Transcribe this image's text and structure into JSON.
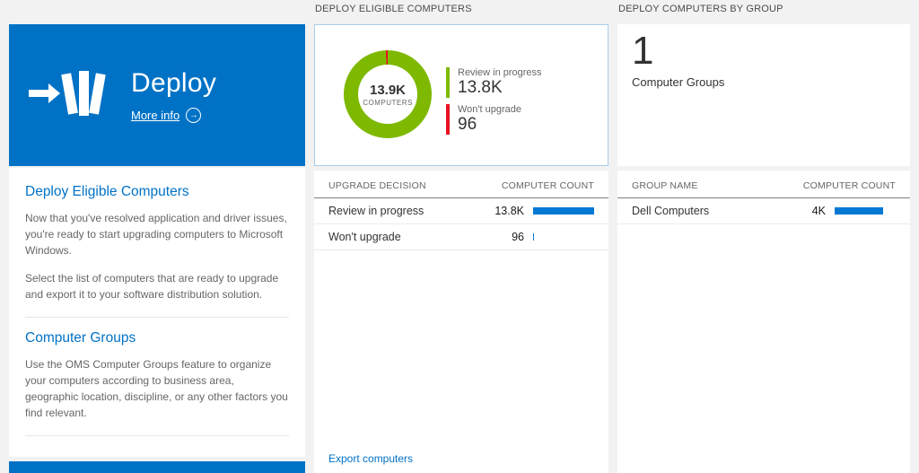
{
  "colors": {
    "accent_blue": "#0072c6",
    "bar_blue": "#0078d4",
    "green": "#7eb900",
    "red": "#e81123"
  },
  "left": {
    "tile": {
      "title": "Deploy",
      "more_info": "More info",
      "more_info_icon": "→"
    },
    "sections": [
      {
        "heading": "Deploy Eligible Computers",
        "paragraphs": [
          "Now that you've resolved application and driver issues, you're ready to start upgrading computers to Microsoft Windows.",
          "Select the list of computers that are ready to upgrade and export it to your software distribution solution."
        ]
      },
      {
        "heading": "Computer Groups",
        "paragraphs": [
          "Use the OMS Computer Groups feature to organize your computers according to business area, geographic location, discipline, or any other factors you find relevant."
        ]
      }
    ]
  },
  "middle": {
    "header": "DEPLOY ELIGIBLE COMPUTERS",
    "donut": {
      "center_value": "13.9K",
      "center_label": "COMPUTERS",
      "segments": [
        {
          "label": "Review in progress",
          "value": 13800,
          "value_label": "13.8K",
          "color": "#7eb900"
        },
        {
          "label": "Won't upgrade",
          "value": 96,
          "value_label": "96",
          "color": "#e81123"
        }
      ]
    },
    "table": {
      "columns": [
        "UPGRADE DECISION",
        "COMPUTER COUNT"
      ],
      "rows": [
        {
          "label": "Review in progress",
          "value": "13.8K",
          "bar_pct": 100
        },
        {
          "label": "Won't upgrade",
          "value": "96",
          "bar_pct": 1.5
        }
      ]
    },
    "export_link": "Export computers"
  },
  "right": {
    "header": "DEPLOY COMPUTERS BY GROUP",
    "summary": {
      "value": "1",
      "label": "Computer Groups"
    },
    "table": {
      "columns": [
        "GROUP NAME",
        "COMPUTER COUNT"
      ],
      "rows": [
        {
          "label": "Dell Computers",
          "value": "4K",
          "bar_pct": 80
        }
      ]
    }
  }
}
